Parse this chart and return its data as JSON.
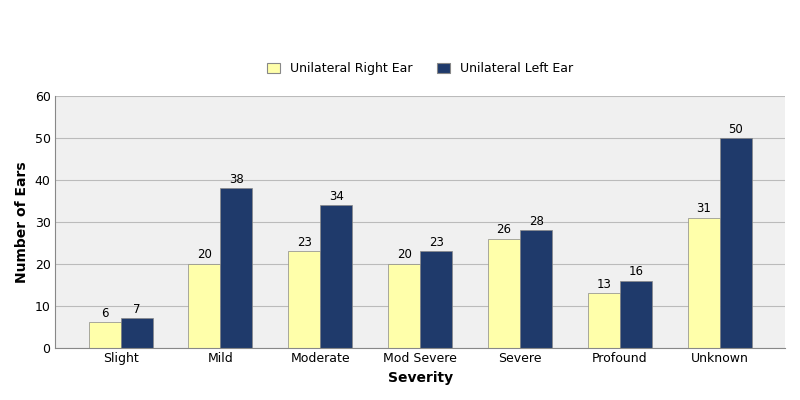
{
  "categories": [
    "Slight",
    "Mild",
    "Moderate",
    "Mod Severe",
    "Severe",
    "Profound",
    "Unknown"
  ],
  "right_ear": [
    6,
    20,
    23,
    20,
    26,
    13,
    31
  ],
  "left_ear": [
    7,
    38,
    34,
    23,
    28,
    16,
    50
  ],
  "right_color": "#FFFFAA",
  "left_color": "#1F3A6B",
  "xlabel": "Severity",
  "ylabel": "Number of Ears",
  "ylim": [
    0,
    60
  ],
  "yticks": [
    0,
    10,
    20,
    30,
    40,
    50,
    60
  ],
  "legend_right": "Unilateral Right Ear",
  "legend_left": "Unilateral Left Ear",
  "bar_width": 0.32,
  "label_fontsize": 8.5,
  "axis_label_fontsize": 10,
  "tick_fontsize": 9,
  "legend_fontsize": 9,
  "background_color": "#ffffff",
  "plot_bg_color": "#f0f0f0",
  "grid_color": "#bbbbbb"
}
